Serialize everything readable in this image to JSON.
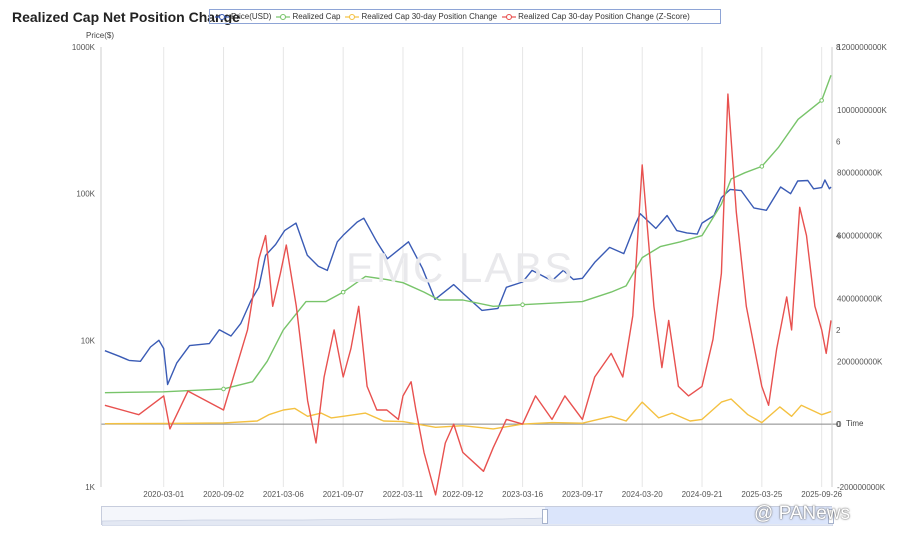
{
  "chart_data": {
    "type": "line",
    "title": "Realized Cap Net Position Change",
    "y_left_label": "Price($)",
    "x_axis_label": "Time",
    "x_tick_labels": [
      "2020-03-01",
      "2020-09-02",
      "2021-03-06",
      "2021-09-07",
      "2022-03-11",
      "2022-09-12",
      "2023-03-16",
      "2023-09-17",
      "2024-03-20",
      "2024-09-21",
      "2025-03-25",
      "2025-09-26"
    ],
    "y_left_scale": "log",
    "y_left_ticks": [
      "1K",
      "10K",
      "100K",
      "1000K"
    ],
    "y_left_range": [
      1000,
      1000000
    ],
    "y_right1_ticks": [
      "-200000000K",
      "0",
      "200000000K",
      "400000000K",
      "600000000K",
      "800000000K",
      "1000000000K",
      "1200000000K"
    ],
    "y_right1_range": [
      -200000000,
      1200000000
    ],
    "y_right2_ticks": [
      "0",
      "2",
      "4",
      "6",
      "8"
    ],
    "y_right2_range": [
      0,
      8
    ],
    "watermark": "EMC LABS",
    "source_badge": "@ PANews",
    "colors": {
      "price": "#3a5bb5",
      "realized_cap": "#78c46a",
      "pos30": "#f4c141",
      "zscore": "#e8514f"
    },
    "series": [
      {
        "name": "Price(USD)",
        "key": "price",
        "axis": "left",
        "color": "#3a5bb5",
        "points": [
          [
            "2019-09-01",
            8500
          ],
          [
            "2019-10-15",
            7800
          ],
          [
            "2019-11-15",
            7300
          ],
          [
            "2019-12-20",
            7200
          ],
          [
            "2020-01-20",
            9000
          ],
          [
            "2020-02-15",
            10000
          ],
          [
            "2020-03-01",
            8800
          ],
          [
            "2020-03-13",
            5000
          ],
          [
            "2020-04-10",
            7000
          ],
          [
            "2020-05-20",
            9200
          ],
          [
            "2020-07-20",
            9500
          ],
          [
            "2020-08-20",
            11800
          ],
          [
            "2020-09-25",
            10700
          ],
          [
            "2020-10-25",
            13000
          ],
          [
            "2020-11-25",
            18500
          ],
          [
            "2020-12-20",
            23000
          ],
          [
            "2021-01-10",
            38000
          ],
          [
            "2021-02-10",
            45000
          ],
          [
            "2021-03-10",
            56000
          ],
          [
            "2021-04-14",
            63000
          ],
          [
            "2021-05-19",
            38000
          ],
          [
            "2021-06-22",
            32000
          ],
          [
            "2021-07-20",
            30000
          ],
          [
            "2021-08-20",
            47000
          ],
          [
            "2021-09-07",
            52000
          ],
          [
            "2021-10-20",
            64000
          ],
          [
            "2021-11-10",
            68000
          ],
          [
            "2021-12-20",
            47000
          ],
          [
            "2022-01-22",
            36000
          ],
          [
            "2022-03-28",
            47000
          ],
          [
            "2022-05-10",
            31000
          ],
          [
            "2022-06-18",
            19000
          ],
          [
            "2022-08-15",
            24000
          ],
          [
            "2022-09-12",
            21000
          ],
          [
            "2022-11-10",
            16000
          ],
          [
            "2022-12-30",
            16500
          ],
          [
            "2023-01-25",
            23000
          ],
          [
            "2023-03-16",
            25000
          ],
          [
            "2023-04-14",
            30000
          ],
          [
            "2023-06-15",
            25500
          ],
          [
            "2023-07-20",
            30000
          ],
          [
            "2023-08-20",
            26000
          ],
          [
            "2023-09-17",
            26500
          ],
          [
            "2023-10-25",
            34000
          ],
          [
            "2023-12-10",
            43000
          ],
          [
            "2024-01-23",
            39000
          ],
          [
            "2024-02-28",
            62000
          ],
          [
            "2024-03-14",
            73000
          ],
          [
            "2024-05-01",
            58000
          ],
          [
            "2024-06-05",
            71000
          ],
          [
            "2024-07-05",
            56000
          ],
          [
            "2024-08-05",
            54000
          ],
          [
            "2024-09-06",
            53000
          ],
          [
            "2024-09-21",
            63000
          ],
          [
            "2024-10-28",
            71000
          ],
          [
            "2024-11-20",
            94000
          ],
          [
            "2024-12-17",
            107000
          ],
          [
            "2025-01-20",
            105000
          ],
          [
            "2025-02-28",
            80000
          ],
          [
            "2025-04-08",
            77000
          ],
          [
            "2025-05-22",
            111000
          ],
          [
            "2025-06-22",
            100000
          ],
          [
            "2025-07-14",
            122000
          ],
          [
            "2025-08-14",
            123000
          ],
          [
            "2025-09-01",
            108000
          ],
          [
            "2025-09-26",
            110000
          ],
          [
            "2025-10-06",
            124000
          ],
          [
            "2025-10-20",
            108000
          ],
          [
            "2025-10-25",
            111000
          ]
        ]
      },
      {
        "name": "Realized Cap",
        "key": "realized_cap",
        "axis": "right1",
        "color": "#78c46a",
        "points": [
          [
            "2019-09-01",
            100000000
          ],
          [
            "2020-03-01",
            103000000
          ],
          [
            "2020-09-02",
            112000000
          ],
          [
            "2020-12-01",
            135000000
          ],
          [
            "2021-01-15",
            200000000
          ],
          [
            "2021-03-06",
            300000000
          ],
          [
            "2021-05-15",
            390000000
          ],
          [
            "2021-07-15",
            390000000
          ],
          [
            "2021-09-07",
            420000000
          ],
          [
            "2021-11-15",
            470000000
          ],
          [
            "2022-01-20",
            460000000
          ],
          [
            "2022-03-11",
            450000000
          ],
          [
            "2022-05-15",
            420000000
          ],
          [
            "2022-07-01",
            395000000
          ],
          [
            "2022-09-12",
            395000000
          ],
          [
            "2022-12-15",
            375000000
          ],
          [
            "2023-03-16",
            380000000
          ],
          [
            "2023-09-17",
            390000000
          ],
          [
            "2023-12-15",
            420000000
          ],
          [
            "2024-01-30",
            440000000
          ],
          [
            "2024-03-20",
            530000000
          ],
          [
            "2024-05-15",
            565000000
          ],
          [
            "2024-07-15",
            580000000
          ],
          [
            "2024-09-21",
            600000000
          ],
          [
            "2024-11-20",
            700000000
          ],
          [
            "2024-12-20",
            780000000
          ],
          [
            "2025-02-01",
            800000000
          ],
          [
            "2025-03-25",
            820000000
          ],
          [
            "2025-05-15",
            880000000
          ],
          [
            "2025-07-15",
            970000000
          ],
          [
            "2025-09-26",
            1030000000
          ],
          [
            "2025-10-25",
            1110000000
          ]
        ]
      },
      {
        "name": "Realized Cap 30-day Position Change",
        "key": "pos30",
        "axis": "right1",
        "color": "#f4c141",
        "points": [
          [
            "2019-09-01",
            1500000
          ],
          [
            "2020-03-01",
            2000000
          ],
          [
            "2020-09-02",
            4000000
          ],
          [
            "2020-12-15",
            10000000
          ],
          [
            "2021-01-20",
            30000000
          ],
          [
            "2021-03-06",
            45000000
          ],
          [
            "2021-04-10",
            50000000
          ],
          [
            "2021-05-20",
            25000000
          ],
          [
            "2021-07-01",
            35000000
          ],
          [
            "2021-08-01",
            20000000
          ],
          [
            "2021-09-07",
            25000000
          ],
          [
            "2021-11-15",
            35000000
          ],
          [
            "2022-01-10",
            10000000
          ],
          [
            "2022-03-11",
            8000000
          ],
          [
            "2022-06-20",
            -10000000
          ],
          [
            "2022-09-12",
            -5000000
          ],
          [
            "2022-12-15",
            -15000000
          ],
          [
            "2023-03-16",
            0
          ],
          [
            "2023-06-15",
            5000000
          ],
          [
            "2023-09-17",
            3000000
          ],
          [
            "2023-12-15",
            25000000
          ],
          [
            "2024-01-30",
            10000000
          ],
          [
            "2024-03-20",
            70000000
          ],
          [
            "2024-05-10",
            20000000
          ],
          [
            "2024-06-20",
            35000000
          ],
          [
            "2024-08-15",
            10000000
          ],
          [
            "2024-09-21",
            15000000
          ],
          [
            "2024-11-20",
            70000000
          ],
          [
            "2024-12-20",
            80000000
          ],
          [
            "2025-02-10",
            30000000
          ],
          [
            "2025-03-25",
            5000000
          ],
          [
            "2025-05-20",
            55000000
          ],
          [
            "2025-06-25",
            25000000
          ],
          [
            "2025-07-25",
            60000000
          ],
          [
            "2025-09-26",
            30000000
          ],
          [
            "2025-10-25",
            40000000
          ]
        ]
      },
      {
        "name": "Realized Cap 30-day Position Change (Z-Score)",
        "key": "zscore",
        "axis": "right2",
        "color": "#e8514f",
        "points": [
          [
            "2019-09-01",
            0.4
          ],
          [
            "2019-12-15",
            0.2
          ],
          [
            "2020-03-01",
            0.6
          ],
          [
            "2020-03-20",
            -0.1
          ],
          [
            "2020-05-15",
            0.7
          ],
          [
            "2020-09-02",
            0.3
          ],
          [
            "2020-11-15",
            2.0
          ],
          [
            "2020-12-20",
            3.5
          ],
          [
            "2021-01-10",
            4.0
          ],
          [
            "2021-02-01",
            2.5
          ],
          [
            "2021-02-25",
            3.2
          ],
          [
            "2021-03-15",
            3.8
          ],
          [
            "2021-04-15",
            2.5
          ],
          [
            "2021-05-20",
            0.5
          ],
          [
            "2021-06-15",
            -0.4
          ],
          [
            "2021-07-10",
            1.0
          ],
          [
            "2021-08-10",
            2.0
          ],
          [
            "2021-09-07",
            1.0
          ],
          [
            "2021-10-01",
            1.6
          ],
          [
            "2021-10-25",
            2.5
          ],
          [
            "2021-11-20",
            0.8
          ],
          [
            "2021-12-20",
            0.3
          ],
          [
            "2022-01-20",
            0.3
          ],
          [
            "2022-02-25",
            0.1
          ],
          [
            "2022-03-11",
            0.6
          ],
          [
            "2022-04-05",
            0.9
          ],
          [
            "2022-04-20",
            0.3
          ],
          [
            "2022-05-15",
            -0.6
          ],
          [
            "2022-06-20",
            -1.5
          ],
          [
            "2022-07-20",
            -0.4
          ],
          [
            "2022-08-15",
            0.0
          ],
          [
            "2022-09-12",
            -0.6
          ],
          [
            "2022-11-15",
            -1.0
          ],
          [
            "2022-12-15",
            -0.5
          ],
          [
            "2023-01-25",
            0.1
          ],
          [
            "2023-03-16",
            0.0
          ],
          [
            "2023-04-25",
            0.6
          ],
          [
            "2023-06-15",
            0.1
          ],
          [
            "2023-07-25",
            0.6
          ],
          [
            "2023-09-17",
            0.1
          ],
          [
            "2023-10-25",
            1.0
          ],
          [
            "2023-12-15",
            1.5
          ],
          [
            "2024-01-20",
            1.0
          ],
          [
            "2024-02-20",
            2.3
          ],
          [
            "2024-03-20",
            5.5
          ],
          [
            "2024-04-25",
            2.5
          ],
          [
            "2024-05-20",
            1.2
          ],
          [
            "2024-06-10",
            2.2
          ],
          [
            "2024-07-10",
            0.8
          ],
          [
            "2024-08-10",
            0.6
          ],
          [
            "2024-09-21",
            0.8
          ],
          [
            "2024-10-25",
            1.8
          ],
          [
            "2024-11-20",
            3.2
          ],
          [
            "2024-12-10",
            7.0
          ],
          [
            "2025-01-05",
            4.5
          ],
          [
            "2025-02-05",
            2.5
          ],
          [
            "2025-03-25",
            0.8
          ],
          [
            "2025-04-15",
            0.4
          ],
          [
            "2025-05-10",
            1.6
          ],
          [
            "2025-06-10",
            2.7
          ],
          [
            "2025-06-25",
            2.0
          ],
          [
            "2025-07-20",
            4.6
          ],
          [
            "2025-08-10",
            4.0
          ],
          [
            "2025-09-05",
            2.5
          ],
          [
            "2025-09-26",
            2.0
          ],
          [
            "2025-10-10",
            1.5
          ],
          [
            "2025-10-25",
            2.2
          ]
        ]
      }
    ]
  }
}
